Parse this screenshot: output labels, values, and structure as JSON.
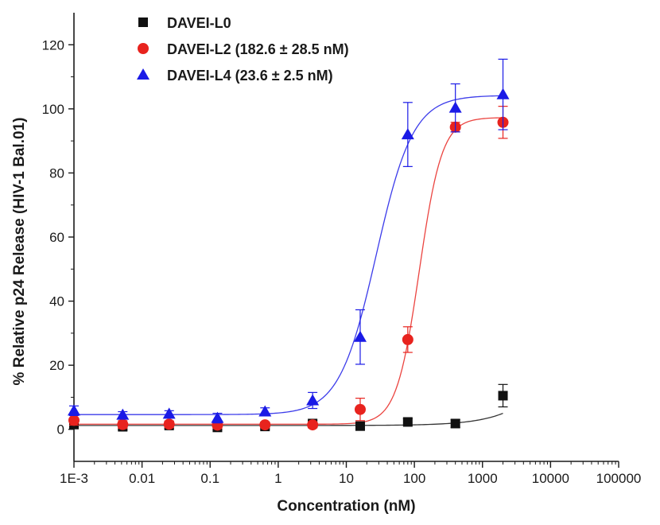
{
  "chart_data": {
    "type": "scatter",
    "title": "",
    "xlabel": "Concentration (nM)",
    "ylabel": "% Relative p24 Release (HIV-1 Bal.01)",
    "xscale": "log",
    "xlim": [
      0.001,
      100000
    ],
    "ylim": [
      -10,
      130
    ],
    "x_ticks": [
      0.001,
      0.01,
      0.1,
      1,
      10,
      100,
      1000,
      10000,
      100000
    ],
    "x_tick_labels": [
      "1E-3",
      "0.01",
      "0.1",
      "1",
      "10",
      "100",
      "1000",
      "10000",
      "100000"
    ],
    "y_ticks": [
      0,
      20,
      40,
      60,
      80,
      100,
      120
    ],
    "y_tick_labels": [
      "0",
      "20",
      "40",
      "60",
      "80",
      "100",
      "120"
    ],
    "grid": false,
    "legend_position": "top-left",
    "x": [
      0.001,
      0.0052,
      0.025,
      0.128,
      0.64,
      3.2,
      16,
      80,
      400,
      2000
    ],
    "series": [
      {
        "name": "DAVEI-L0",
        "color": "#111111",
        "marker": "square",
        "values": [
          1.5,
          0.8,
          1.2,
          0.6,
          0.9,
          1.8,
          1.0,
          2.3,
          1.8,
          10.5
        ],
        "errors": [
          1.0,
          1.0,
          1.0,
          0.8,
          0.8,
          1.0,
          0.8,
          1.0,
          1.2,
          3.5
        ],
        "fit": {
          "bottom": 1.2,
          "top": 100,
          "ec50": 50000,
          "hill": 1.0
        }
      },
      {
        "name": "DAVEI-L2 (182.6 ± 28.5 nM)",
        "color": "#e8231e",
        "marker": "circle",
        "values": [
          2.8,
          1.5,
          1.6,
          1.3,
          1.4,
          1.4,
          6.2,
          28.0,
          94.3,
          95.8
        ],
        "errors": [
          1.5,
          1.2,
          1.0,
          1.0,
          0.8,
          0.8,
          3.5,
          4.0,
          1.5,
          5.0
        ],
        "fit": {
          "bottom": 1.6,
          "top": 97.3,
          "ec50": 118,
          "hill": 2.6
        }
      },
      {
        "name": "DAVEI-L4 (23.6 ± 2.5 nM)",
        "color": "#1a1ae6",
        "marker": "triangle",
        "values": [
          5.8,
          4.5,
          4.8,
          3.5,
          5.5,
          9.0,
          28.8,
          92.0,
          100.3,
          104.5
        ],
        "errors": [
          1.5,
          1.0,
          1.0,
          1.5,
          1.2,
          2.5,
          8.5,
          10.0,
          7.5,
          11.0
        ],
        "fit": {
          "bottom": 4.6,
          "top": 104.2,
          "ec50": 27.5,
          "hill": 1.6
        }
      }
    ]
  }
}
